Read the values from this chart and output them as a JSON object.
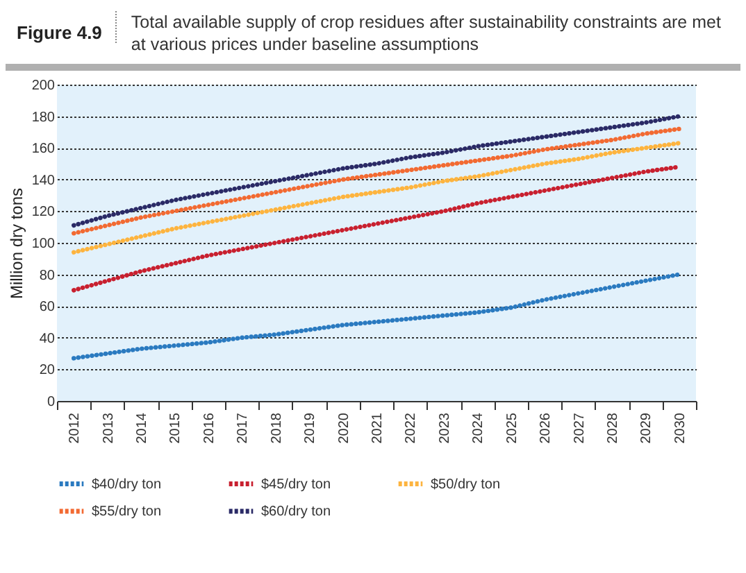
{
  "chart_data": {
    "type": "line",
    "title": "Total available supply of crop residues after sustainability constraints are met at various prices under baseline assumptions",
    "annotations": [
      "Figure 4.9"
    ],
    "ylabel": "Million dry tons",
    "categories": [
      "2012",
      "2013",
      "2014",
      "2015",
      "2016",
      "2017",
      "2018",
      "2019",
      "2020",
      "2021",
      "2022",
      "2023",
      "2024",
      "2025",
      "2026",
      "2027",
      "2028",
      "2029",
      "2030"
    ],
    "ylim": [
      0,
      200
    ],
    "yticks": [
      0,
      20,
      40,
      60,
      80,
      100,
      120,
      140,
      160,
      180,
      200
    ],
    "grid": "y",
    "legend": "bottom",
    "line_style": "dotted",
    "series": [
      {
        "name": "$40/dry ton",
        "color": "#2a7ac0",
        "values": [
          27,
          30,
          33,
          35,
          37,
          40,
          42,
          45,
          48,
          50,
          52,
          54,
          56,
          59,
          64,
          68,
          72,
          76,
          80
        ]
      },
      {
        "name": "$45/dry ton",
        "color": "#c8202f",
        "values": [
          70,
          76,
          82,
          87,
          92,
          96,
          100,
          104,
          108,
          112,
          116,
          120,
          125,
          129,
          133,
          137,
          141,
          145,
          148
        ]
      },
      {
        "name": "$50/dry ton",
        "color": "#fdb43f",
        "values": [
          94,
          99,
          104,
          109,
          113,
          117,
          121,
          125,
          129,
          132,
          135,
          139,
          142,
          146,
          150,
          153,
          157,
          160,
          163
        ]
      },
      {
        "name": "$55/dry ton",
        "color": "#f26a32",
        "values": [
          106,
          111,
          116,
          120,
          124,
          128,
          132,
          136,
          140,
          143,
          146,
          149,
          152,
          155,
          159,
          162,
          165,
          169,
          172
        ]
      },
      {
        "name": "$60/dry ton",
        "color": "#2a2a66",
        "values": [
          111,
          117,
          122,
          127,
          131,
          135,
          139,
          143,
          147,
          150,
          154,
          157,
          161,
          164,
          167,
          170,
          173,
          176,
          180
        ]
      }
    ]
  }
}
